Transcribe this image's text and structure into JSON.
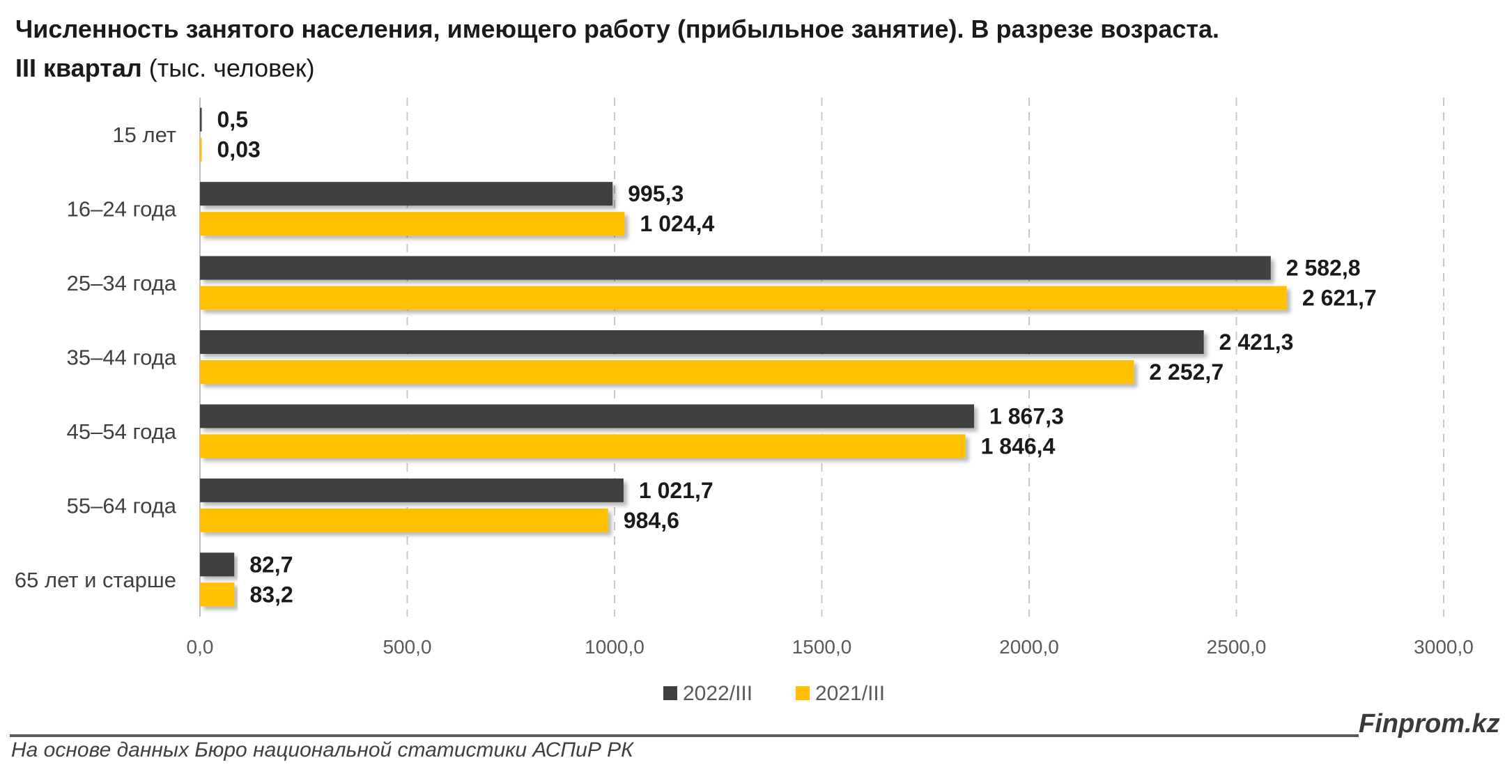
{
  "header": {
    "title_line1": "Численность занятого населения, имеющего работу (прибыльное занятие). В разрезе возраста.",
    "title_line2_bold": "III квартал",
    "title_line2_unit": "(тыс. человек)"
  },
  "chart_data": {
    "type": "bar",
    "orientation": "horizontal",
    "categories": [
      "15 лет",
      "16–24 года",
      "25–34 года",
      "35–44 года",
      "45–54 года",
      "55–64 года",
      "65 лет и старше"
    ],
    "series": [
      {
        "name": "2022/III",
        "color": "#404040",
        "values": [
          0.5,
          995.3,
          2582.8,
          2421.3,
          1867.3,
          1021.7,
          82.7
        ],
        "labels": [
          "0,5",
          "995,3",
          "2 582,8",
          "2 421,3",
          "1 867,3",
          "1 021,7",
          "82,7"
        ]
      },
      {
        "name": "2021/III",
        "color": "#FFC000",
        "values": [
          0.03,
          1024.4,
          2621.7,
          2252.7,
          1846.4,
          984.6,
          83.2
        ],
        "labels": [
          "0,03",
          "1 024,4",
          "2 621,7",
          "2 252,7",
          "1 846,4",
          "984,6",
          "83,2"
        ]
      }
    ],
    "xlim": [
      0,
      3000
    ],
    "x_ticks": [
      0,
      500,
      1000,
      1500,
      2000,
      2500,
      3000
    ],
    "x_tick_labels": [
      "0,0",
      "500,0",
      "1000,0",
      "1500,0",
      "2000,0",
      "2500,0",
      "3000,0"
    ],
    "grid": "vertical-dashed",
    "legend_position": "bottom"
  },
  "footer": {
    "brand": "Finprom.kz",
    "source": "На основе данных Бюро национальной статистики АСПиР РК"
  }
}
